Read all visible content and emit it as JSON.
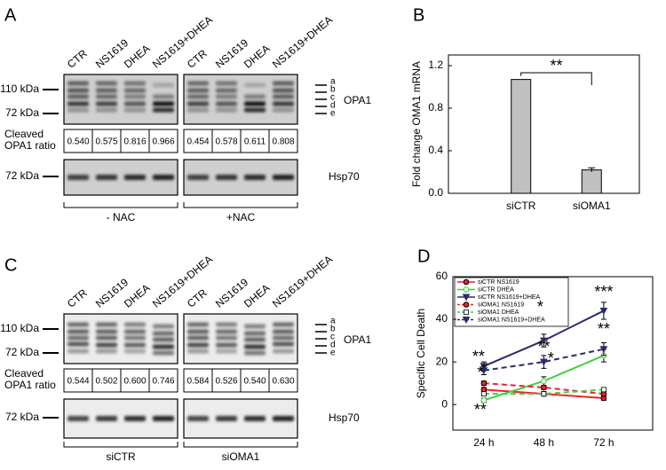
{
  "blots": [
    {
      "panel": "A",
      "lanes": [
        [
          "CTR",
          "NS1619",
          "DHEA",
          "NS1619+DHEA"
        ],
        [
          "CTR",
          "NS1619",
          "DHEA",
          "NS1619+DHEA"
        ]
      ],
      "markers": [
        "110 kDa",
        "72 kDa"
      ],
      "band_letters": [
        "a",
        "b",
        "c",
        "d",
        "e"
      ],
      "protein": "OPA1",
      "ratio_label": [
        "Cleaved",
        "OPA1 ratio"
      ],
      "ratios": [
        [
          "0.540",
          "0.575",
          "0.816",
          "0.966"
        ],
        [
          "0.454",
          "0.578",
          "0.611",
          "0.808"
        ]
      ],
      "loading_marker": "72 kDa",
      "loading_protein": "Hsp70",
      "groups": [
        "- NAC",
        "+NAC"
      ]
    },
    {
      "panel": "C",
      "lanes": [
        [
          "CTR",
          "NS1619",
          "DHEA",
          "NS1619+DHEA"
        ],
        [
          "CTR",
          "NS1619",
          "DHEA",
          "NS1619+DHEA"
        ]
      ],
      "markers": [
        "110 kDa",
        "72 kDa"
      ],
      "band_letters": [
        "a",
        "b",
        "c",
        "d",
        "e"
      ],
      "protein": "OPA1",
      "ratio_label": [
        "Cleaved",
        "OPA1 ratio"
      ],
      "ratios": [
        [
          "0.544",
          "0.502",
          "0.600",
          "0.746"
        ],
        [
          "0.584",
          "0.526",
          "0.540",
          "0.630"
        ]
      ],
      "loading_marker": "72 kDa",
      "loading_protein": "Hsp70",
      "groups": [
        "siCTR",
        "siOMA1"
      ]
    }
  ],
  "chart_data": [
    {
      "type": "bar",
      "panel": "B",
      "ylabel": "Fold change OMA1 mRNA",
      "categories": [
        "siCTR",
        "siOMA1"
      ],
      "values": [
        1.07,
        0.22
      ],
      "errors": [
        0,
        0.02
      ],
      "color": "#c0c0c0",
      "ylim": [
        0,
        1.3
      ],
      "yticks": [
        {
          "value": 0,
          "label": "0.0"
        },
        0.4,
        0.8,
        1.2
      ],
      "significance": "**"
    },
    {
      "type": "line",
      "panel": "D",
      "ylabel": "Specific Cell Death",
      "categories": [
        "24 h",
        "48 h",
        "72 h"
      ],
      "ylim": [
        -12,
        60
      ],
      "yticks": [
        0,
        20,
        40,
        60
      ],
      "series": [
        {
          "name": "siCTR NS1619",
          "color": "#e8262a",
          "dashed": false,
          "marker": "circle",
          "values": [
            7,
            5,
            3
          ],
          "errors": [
            1,
            1,
            1
          ]
        },
        {
          "name": "siCTR DHEA",
          "color": "#3fd13f",
          "dashed": false,
          "marker": "open-circle",
          "values": [
            2,
            11,
            23
          ],
          "errors": [
            1,
            2,
            3
          ]
        },
        {
          "name": "siCTR NS1619+DHEA",
          "color": "#2b2b6b",
          "dashed": false,
          "marker": "triangle",
          "values": [
            18,
            30,
            44
          ],
          "errors": [
            2,
            3,
            4
          ]
        },
        {
          "name": "siOMA1 NS1619",
          "color": "#e8262a",
          "dashed": true,
          "marker": "circle",
          "values": [
            10,
            8,
            5
          ],
          "errors": [
            1,
            1,
            1
          ]
        },
        {
          "name": "siOMA1 DHEA",
          "color": "#3fd13f",
          "dashed": true,
          "marker": "open-square",
          "values": [
            5,
            5,
            7
          ],
          "errors": [
            1,
            1,
            1
          ]
        },
        {
          "name": "siOMA1 NS1619+DHEA",
          "color": "#2b2b6b",
          "dashed": true,
          "marker": "triangle",
          "values": [
            16,
            20,
            26
          ],
          "errors": [
            2,
            3,
            3
          ]
        }
      ],
      "annotations": [
        "**",
        "*",
        "**",
        "*",
        "**",
        "*",
        "***",
        "**"
      ]
    }
  ]
}
